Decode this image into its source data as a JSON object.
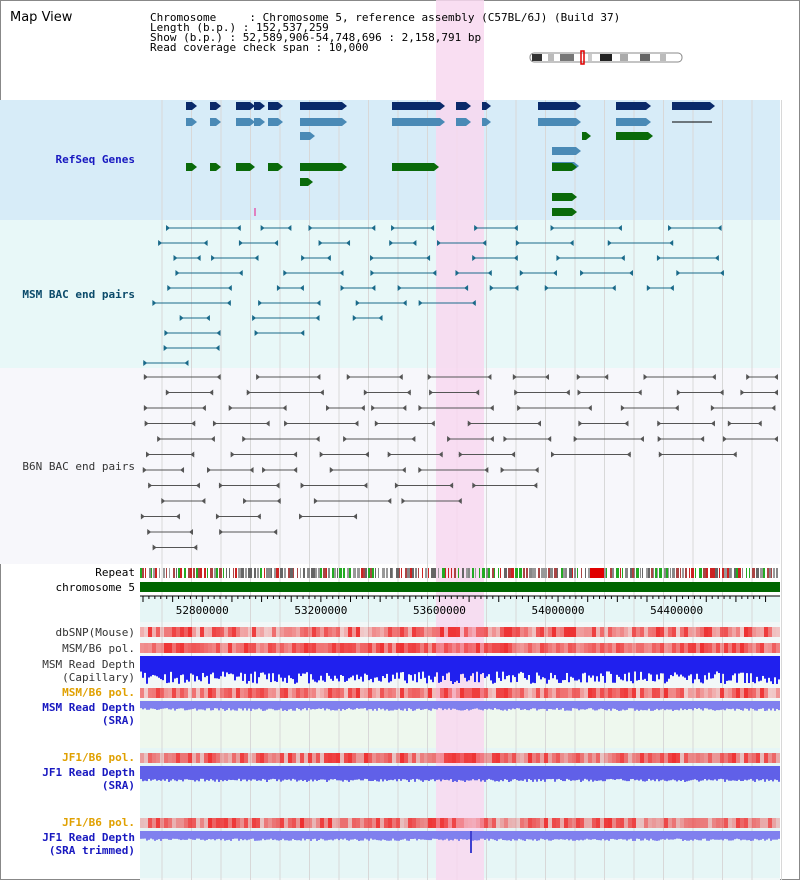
{
  "page": {
    "title": "Map View"
  },
  "info": {
    "line1": "Chromosome     : Chromosome 5, reference assembly (C57BL/6J) (Build 37)",
    "line2": "Length (b.p.) : 152,537,259",
    "line3": "Show (b.p.) : 52,589,906-54,748,696 : 2,158,791 bp",
    "line4": "Read coverage check span : 10,000"
  },
  "labels": {
    "refseq": "RefSeq Genes",
    "msm_bac": "MSM BAC end pairs",
    "b6n_bac": "B6N BAC end pairs",
    "repeat": "Repeat",
    "chromosome": "chromosome 5",
    "dbsnp": "dbSNP(Mouse)",
    "msm_b6_pol_1": "MSM/B6 pol.",
    "msm_depth_cap_1": "MSM Read Depth",
    "msm_depth_cap_2": "(Capillary)",
    "msm_b6_pol_2": "MSM/B6 pol.",
    "msm_depth_sra_1": "MSM Read Depth",
    "msm_depth_sra_2": "(SRA)",
    "jf1_pol_1": "JF1/B6 pol.",
    "jf1_depth_1": "JF1 Read Depth",
    "jf1_depth_2": "(SRA)",
    "jf1_pol_2": "JF1/B6 pol.",
    "jf1_trim_1": "JF1 Read Depth",
    "jf1_trim_2": "(SRA trimmed)"
  },
  "axis": {
    "ticks": [
      "52800000",
      "53200000",
      "53600000",
      "54000000",
      "54400000"
    ],
    "tick_values": [
      52800000,
      53200000,
      53600000,
      54000000,
      54400000
    ],
    "range": [
      52589906,
      54748696
    ]
  },
  "colors": {
    "refseq_bg": "#d7ecf8",
    "msm_bg": "#e8f8f8",
    "b6n_bg": "#f7f7fb",
    "highlight": "#f8d8f0",
    "gene_dark": "#0a2a6a",
    "gene_light": "#4a8ab6",
    "gene_green": "#0a6a0a",
    "msm_line": "#1a6a8a",
    "b6n_line": "#555555",
    "chrom_green": "#006600",
    "depth_blue": "#2020ee",
    "depth_light": "#8080ee",
    "pol_red": "#ee3030",
    "label_blue": "#1818c0",
    "label_orange": "#e0a000"
  },
  "icons": {
    "ideogram": "chromosome-ideogram"
  }
}
